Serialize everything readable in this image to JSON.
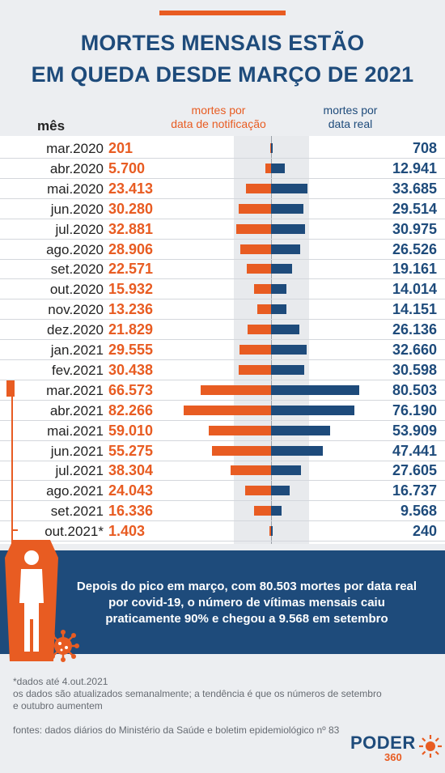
{
  "header": {
    "title_line1": "MORTES MENSAIS ESTÃO",
    "title_line2": "EM QUEDA DESDE MARÇO DE 2021",
    "col_month": "mês",
    "col_notification_l1": "mortes por",
    "col_notification_l2": "data de notificação",
    "col_real_l1": "mortes por",
    "col_real_l2": "data real"
  },
  "chart_data": {
    "type": "bar",
    "categories": [
      "mar.2020",
      "abr.2020",
      "mai.2020",
      "jun.2020",
      "jul.2020",
      "ago.2020",
      "set.2020",
      "out.2020",
      "nov.2020",
      "dez.2020",
      "jan.2021",
      "fev.2021",
      "mar.2021",
      "abr.2021",
      "mai.2021",
      "jun.2021",
      "jul.2021",
      "ago.2021",
      "set.2021",
      "out.2021*"
    ],
    "series": [
      {
        "name": "mortes por data de notificação",
        "values": [
          201,
          5700,
          23413,
          30280,
          32881,
          28906,
          22571,
          15932,
          13236,
          21829,
          29555,
          30438,
          66573,
          82266,
          59010,
          55275,
          38304,
          24043,
          16336,
          1403
        ],
        "labels": [
          "201",
          "5.700",
          "23.413",
          "30.280",
          "32.881",
          "28.906",
          "22.571",
          "15.932",
          "13.236",
          "21.829",
          "29.555",
          "30.438",
          "66.573",
          "82.266",
          "59.010",
          "55.275",
          "38.304",
          "24.043",
          "16.336",
          "1.403"
        ],
        "color": "#e85c22"
      },
      {
        "name": "mortes por data real",
        "values": [
          708,
          12941,
          33685,
          29514,
          30975,
          26526,
          19161,
          14014,
          14151,
          26136,
          32660,
          30598,
          80503,
          76190,
          53909,
          47441,
          27605,
          16737,
          9568,
          240
        ],
        "labels": [
          "708",
          "12.941",
          "33.685",
          "29.514",
          "30.975",
          "26.526",
          "19.161",
          "14.014",
          "14.151",
          "26.136",
          "32.660",
          "30.598",
          "80.503",
          "76.190",
          "53.909",
          "47.441",
          "27.605",
          "16.737",
          "9.568",
          "240"
        ],
        "color": "#1e4b7b"
      }
    ],
    "orientation": "horizontal-diverging"
  },
  "callout": {
    "line1": "Depois do pico em março, com 80.503 mortes por data real",
    "line2": "por covid-19, o número de vítimas mensais caiu",
    "line3": "praticamente 90% e chegou a 9.568 em setembro"
  },
  "footer": {
    "note1": "*dados até 4.out.2021",
    "note2": "os dados são atualizados semanalmente; a tendência é que os números de setembro",
    "note3": "e outubro aumentem",
    "sources": "fontes: dados diários do Ministério da Saúde e boletim epidemiológico nº 83"
  },
  "brand": {
    "name": "PODER",
    "suffix": "360"
  },
  "colors": {
    "accent": "#e85c22",
    "navy": "#1e4b7b"
  }
}
